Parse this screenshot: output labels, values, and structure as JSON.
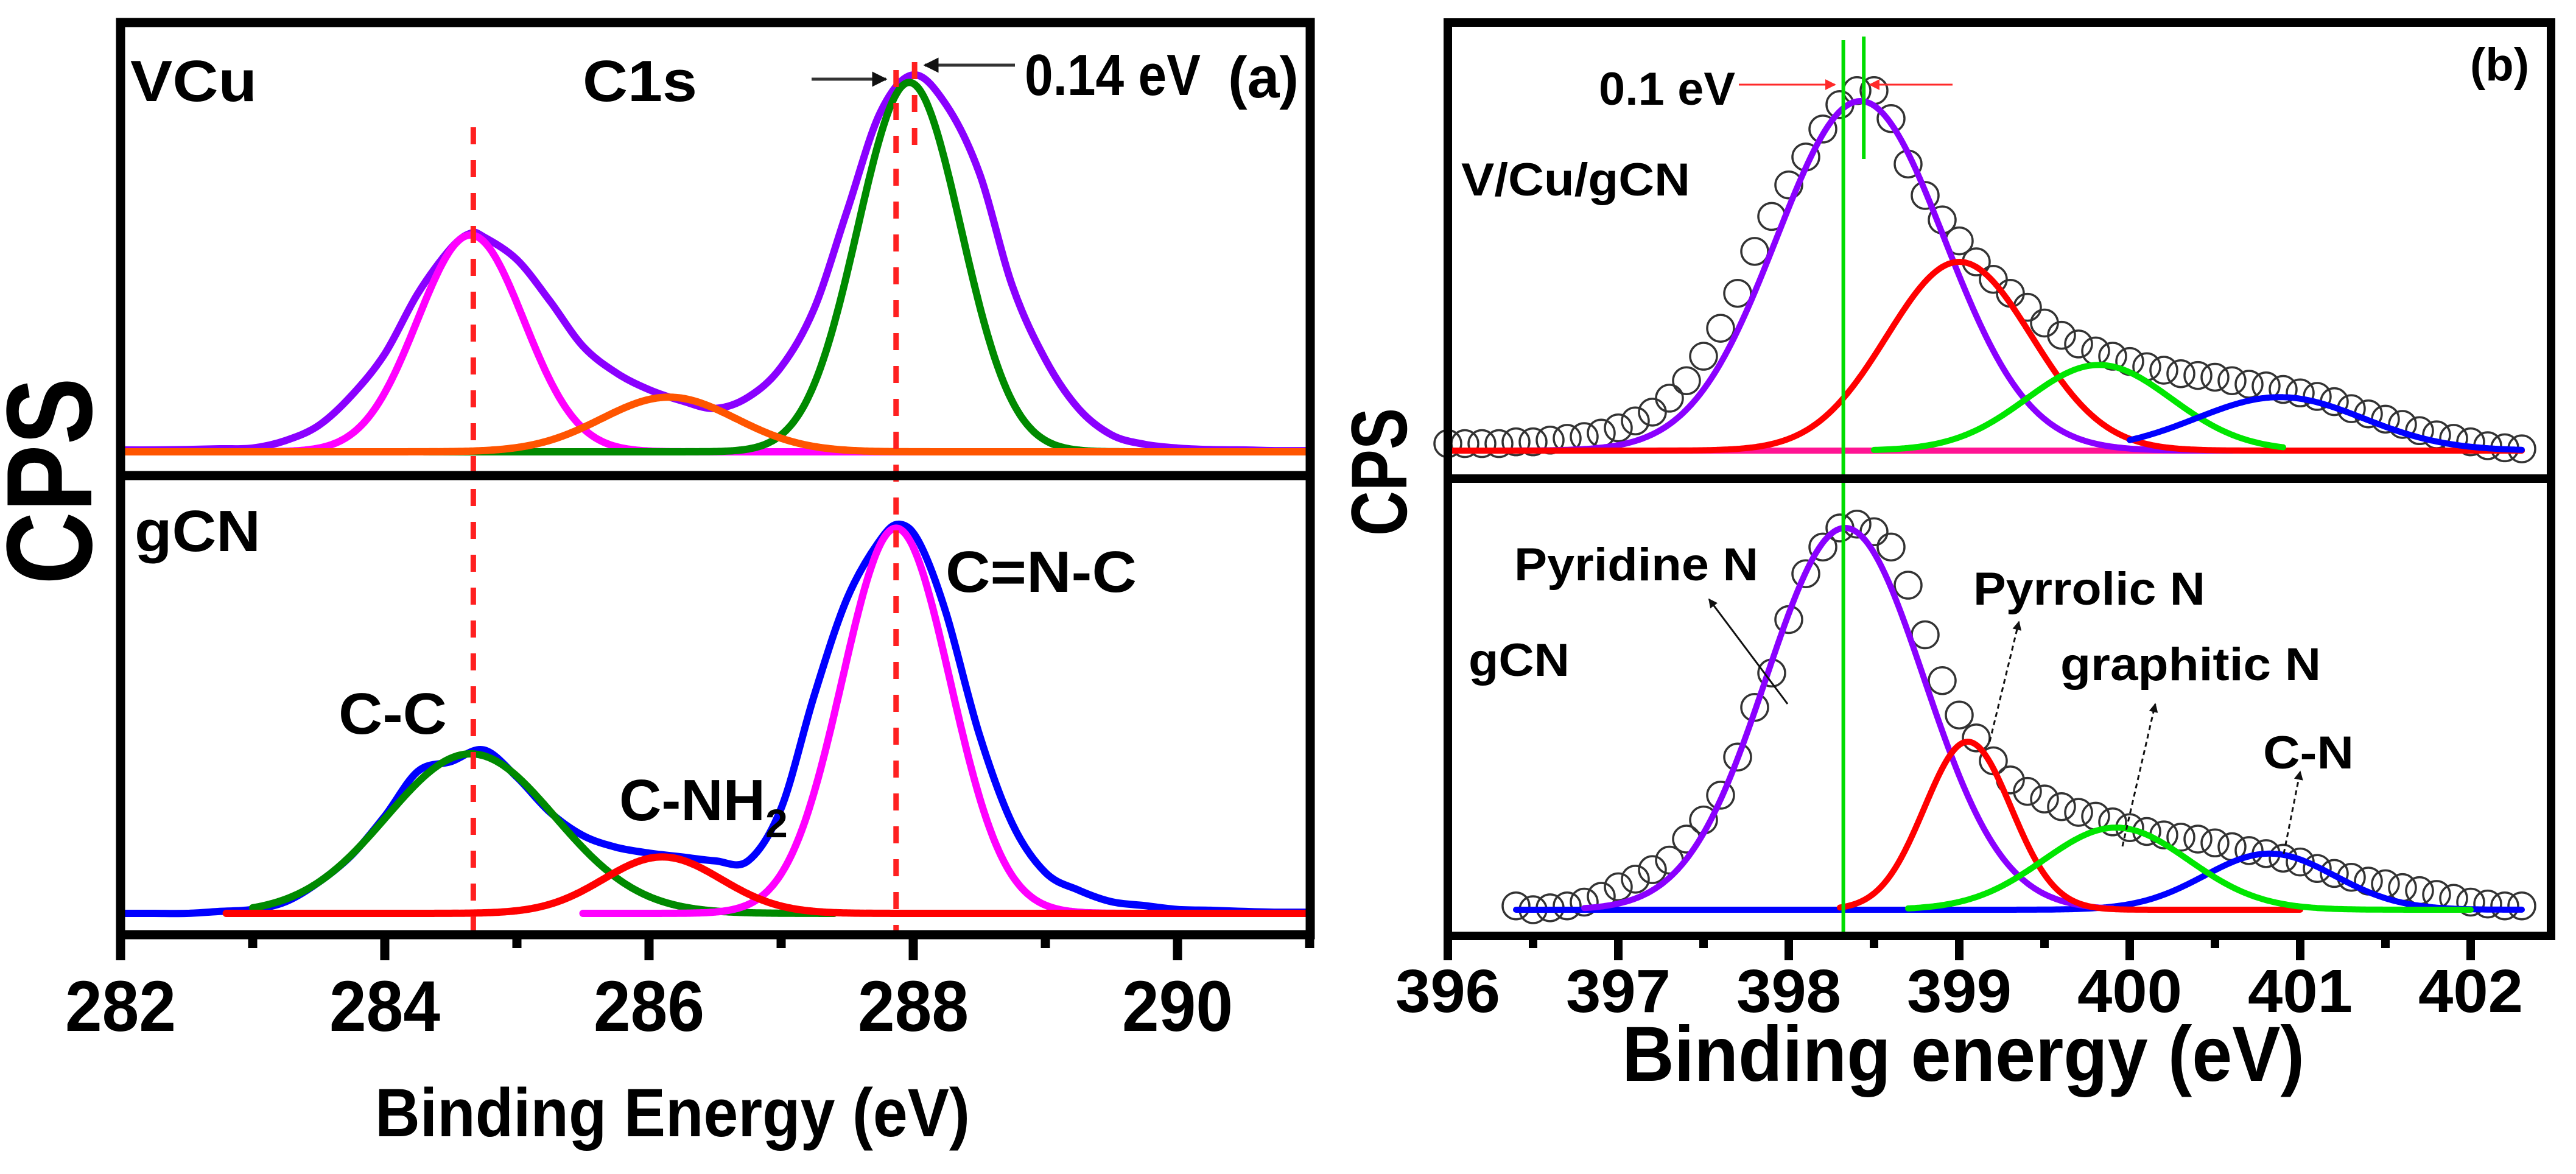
{
  "chart_data": [
    {
      "type": "line",
      "panel_label": "(a)",
      "title": "C1s",
      "xlabel": "Binding Energy (eV)",
      "ylabel": "CPS",
      "xlim": [
        282,
        291
      ],
      "xticks": [
        282,
        284,
        286,
        288,
        290
      ],
      "xtick_labels": [
        "282",
        "284",
        "286",
        "288",
        "290"
      ],
      "y_units": "normalized intensity (a.u.)",
      "grid": false,
      "reference_lines_eV": [
        284.67,
        287.87,
        288.01
      ],
      "shift_annotation": {
        "text": "0.14 eV",
        "from": 287.87,
        "to": 288.01
      },
      "subplots": [
        {
          "label": "VCu",
          "experimental": {
            "color": "#8a00ff",
            "x": [
              282,
              282.25,
              282.5,
              282.75,
              283,
              283.25,
              283.5,
              283.75,
              284,
              284.25,
              284.5,
              284.65,
              284.75,
              285,
              285.25,
              285.5,
              285.75,
              286,
              286.25,
              286.5,
              286.75,
              287,
              287.25,
              287.5,
              287.75,
              288,
              288.25,
              288.5,
              288.75,
              289,
              289.25,
              289.5,
              289.75,
              290,
              290.25,
              290.5,
              290.75,
              291
            ],
            "y": [
              0.005,
              0.005,
              0.006,
              0.008,
              0.01,
              0.03,
              0.07,
              0.15,
              0.26,
              0.42,
              0.54,
              0.58,
              0.57,
              0.51,
              0.4,
              0.28,
              0.21,
              0.165,
              0.135,
              0.115,
              0.145,
              0.225,
              0.38,
              0.64,
              0.9,
              1.0,
              0.92,
              0.74,
              0.44,
              0.245,
              0.115,
              0.045,
              0.02,
              0.01,
              0.006,
              0.005,
              0.003,
              0.003
            ]
          },
          "components": [
            {
              "name": "C-C",
              "center": 284.65,
              "amplitude": 0.575,
              "fwhm": 0.95,
              "color": "#ff00ff",
              "x_range": [
                282,
                290.9
              ]
            },
            {
              "name": "C=N-C",
              "center": 287.97,
              "amplitude": 0.98,
              "fwhm": 0.92,
              "color": "#008a00",
              "x_range": [
                284.3,
                289.6
              ]
            },
            {
              "name": "C-NH2",
              "center": 286.15,
              "amplitude": 0.145,
              "fwhm": 1.2,
              "color": "#ff5500",
              "x_range": [
                282,
                291
              ]
            }
          ]
        },
        {
          "label": "gCN",
          "experimental": {
            "color": "#0000ff",
            "x": [
              282,
              282.25,
              282.5,
              282.75,
              283,
              283.25,
              283.5,
              283.75,
              284,
              284.25,
              284.5,
              284.75,
              285,
              285.25,
              285.5,
              285.75,
              286,
              286.25,
              286.5,
              286.75,
              287,
              287.25,
              287.5,
              287.75,
              287.9,
              288.05,
              288.25,
              288.5,
              288.75,
              289,
              289.25,
              289.5,
              289.75,
              290,
              290.25,
              290.5,
              290.75,
              291
            ],
            "y": [
              0.0,
              0.0,
              0.0,
              0.005,
              0.01,
              0.03,
              0.08,
              0.15,
              0.25,
              0.365,
              0.39,
              0.42,
              0.35,
              0.26,
              0.2,
              0.17,
              0.155,
              0.145,
              0.135,
              0.135,
              0.27,
              0.56,
              0.81,
              0.96,
              1.0,
              0.95,
              0.77,
              0.46,
              0.23,
              0.105,
              0.06,
              0.03,
              0.02,
              0.01,
              0.008,
              0.005,
              0.003,
              0.003
            ]
          },
          "components": [
            {
              "name": "C-C",
              "center": 284.65,
              "amplitude": 0.41,
              "fwhm": 1.5,
              "color": "#008a00",
              "x_range": [
                283.0,
                287.4
              ]
            },
            {
              "name": "C=N-C",
              "center": 287.87,
              "amplitude": 0.99,
              "fwhm": 0.96,
              "color": "#ff00ff",
              "x_range": [
                285.5,
                291
              ]
            },
            {
              "name": "C-NH2",
              "center": 286.1,
              "amplitude": 0.145,
              "fwhm": 1.05,
              "color": "#ff0000",
              "x_range": [
                282.8,
                291
              ]
            }
          ],
          "peak_labels": [
            {
              "text": "C-C"
            },
            {
              "text": "C-NH",
              "subscript": "2"
            },
            {
              "text": "C=N-C"
            }
          ]
        }
      ]
    },
    {
      "type": "line",
      "panel_label": "(b)",
      "xlabel": "Binding energy (eV)",
      "ylabel": "CPS",
      "xlim": [
        396,
        402.46
      ],
      "xticks": [
        396,
        397,
        398,
        399,
        400,
        401,
        402
      ],
      "xtick_labels": [
        "396",
        "397",
        "398",
        "399",
        "400",
        "401",
        "402"
      ],
      "y_units": "normalized intensity (a.u.)",
      "grid": false,
      "reference_lines_eV": [
        398.32,
        398.44
      ],
      "shift_annotation": {
        "text": "0.1 eV",
        "from": 398.32,
        "to": 398.44
      },
      "subplots": [
        {
          "label": "V/Cu/gCN",
          "experimental": {
            "marker": "open-circle",
            "color": "#333333",
            "x_start": 396.0,
            "x_step": 0.1,
            "y": [
              0.02,
              0.02,
              0.02,
              0.02,
              0.025,
              0.025,
              0.03,
              0.035,
              0.04,
              0.05,
              0.065,
              0.085,
              0.11,
              0.15,
              0.2,
              0.27,
              0.35,
              0.45,
              0.57,
              0.67,
              0.76,
              0.84,
              0.92,
              0.99,
              1.03,
              1.03,
              0.95,
              0.82,
              0.73,
              0.66,
              0.6,
              0.54,
              0.49,
              0.45,
              0.41,
              0.365,
              0.33,
              0.305,
              0.285,
              0.27,
              0.255,
              0.24,
              0.23,
              0.22,
              0.215,
              0.21,
              0.2,
              0.19,
              0.185,
              0.175,
              0.165,
              0.155,
              0.14,
              0.12,
              0.105,
              0.09,
              0.075,
              0.057,
              0.045,
              0.035,
              0.025,
              0.014,
              0.008,
              0.005
            ]
          },
          "components": [
            {
              "name": "Baseline",
              "center": 399,
              "amplitude": 0,
              "fwhm": 1,
              "color": "#ff1493",
              "x_range": [
                396,
                402.3
              ]
            },
            {
              "name": "Pyridine N",
              "center": 398.42,
              "amplitude": 1.0,
              "fwhm": 1.16,
              "color": "#8a00ff",
              "x_range": [
                396,
                400.6
              ]
            },
            {
              "name": "Pyrrolic N",
              "center": 399.0,
              "amplitude": 0.54,
              "fwhm": 1.0,
              "color": "#ff0000",
              "x_range": [
                396,
                402.3
              ]
            },
            {
              "name": "graphitic N",
              "center": 399.82,
              "amplitude": 0.245,
              "fwhm": 1.0,
              "color": "#00e600",
              "x_range": [
                398.5,
                400.9
              ]
            },
            {
              "name": "C-N",
              "center": 400.88,
              "amplitude": 0.153,
              "fwhm": 1.15,
              "color": "#0000ff",
              "x_range": [
                400.0,
                402.3
              ]
            }
          ]
        },
        {
          "label": "gCN",
          "experimental": {
            "marker": "open-circle",
            "color": "#333333",
            "x_start": 396.4,
            "x_step": 0.1,
            "y": [
              0.01,
              0.0,
              0.005,
              0.01,
              0.02,
              0.035,
              0.06,
              0.08,
              0.105,
              0.13,
              0.185,
              0.235,
              0.3,
              0.4,
              0.53,
              0.62,
              0.76,
              0.88,
              0.95,
              1.0,
              1.01,
              0.99,
              0.95,
              0.85,
              0.72,
              0.6,
              0.51,
              0.45,
              0.39,
              0.34,
              0.31,
              0.29,
              0.27,
              0.255,
              0.245,
              0.23,
              0.215,
              0.205,
              0.196,
              0.19,
              0.185,
              0.175,
              0.165,
              0.155,
              0.147,
              0.135,
              0.125,
              0.108,
              0.095,
              0.085,
              0.075,
              0.068,
              0.058,
              0.05,
              0.04,
              0.03,
              0.02,
              0.015,
              0.01,
              0.01
            ]
          },
          "components": [
            {
              "name": "C-N",
              "center": 400.82,
              "amplitude": 0.147,
              "fwhm": 0.9,
              "color": "#0000ff",
              "x_range": [
                396.4,
                402.3
              ]
            },
            {
              "name": "Pyridine N",
              "center": 398.33,
              "amplitude": 1.0,
              "fwhm": 1.09,
              "color": "#8a00ff",
              "x_range": [
                396.8,
                399.9
              ]
            },
            {
              "name": "Pyrrolic N",
              "center": 399.05,
              "amplitude": 0.44,
              "fwhm": 0.6,
              "color": "#ff0000",
              "x_range": [
                398.3,
                401.0
              ]
            },
            {
              "name": "graphitic N",
              "center": 399.92,
              "amplitude": 0.215,
              "fwhm": 1.0,
              "color": "#00e600",
              "x_range": [
                398.7,
                402.0
              ]
            }
          ],
          "peak_labels": [
            {
              "text": "Pyridine N"
            },
            {
              "text": "Pyrrolic N"
            },
            {
              "text": "graphitic N"
            },
            {
              "text": "C-N"
            }
          ]
        }
      ]
    }
  ]
}
